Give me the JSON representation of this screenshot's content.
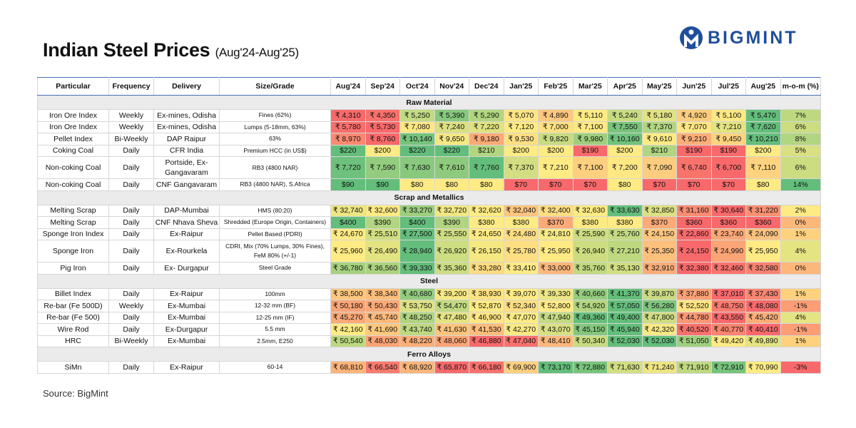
{
  "header": {
    "title": "Indian Steel Prices",
    "subtitle": "(Aug'24-Aug'25)",
    "logo": "BIGMINT"
  },
  "table": {
    "columns": [
      "Particular",
      "Frequency",
      "Delivery",
      "Size/Grade",
      "Aug'24",
      "Sep'24",
      "Oct'24",
      "Nov'24",
      "Dec'24",
      "Jan'25",
      "Feb'25",
      "Mar'25",
      "Apr'25",
      "May'25",
      "Jun'25",
      "Jul'25",
      "Aug'25",
      "m-o-m (%)"
    ],
    "sections": [
      {
        "title": "Raw Material",
        "rows": [
          [
            "Iron Ore Index",
            "Weekly",
            "Ex-mines, Odisha",
            "Fines (62%)",
            "₹ 4,310",
            "₹ 4,350",
            "₹ 5,250",
            "₹ 5,390",
            "₹ 5,290",
            "₹ 5,070",
            "₹ 4,890",
            "₹ 5,110",
            "₹ 5,240",
            "₹ 5,180",
            "₹ 4,920",
            "₹ 5,100",
            "₹ 5,470",
            "7%"
          ],
          [
            "Iron Ore Index",
            "Weekly",
            "Ex-mines, Odisha",
            "Lumps (5-18mm, 63%)",
            "₹ 5,780",
            "₹ 5,730",
            "₹ 7,080",
            "₹ 7,240",
            "₹ 7,220",
            "₹ 7,120",
            "₹ 7,000",
            "₹ 7,100",
            "₹ 7,550",
            "₹ 7,370",
            "₹ 7,070",
            "₹ 7,210",
            "₹ 7,620",
            "6%"
          ],
          [
            "Pellet Index",
            "Bi-Weekly",
            "DAP Raipur",
            "63%",
            "₹ 8,970",
            "₹ 8,760",
            "₹ 10,140",
            "₹ 9,650",
            "₹ 9,180",
            "₹ 9,530",
            "₹ 9,820",
            "₹ 9,980",
            "₹ 10,160",
            "₹ 9,610",
            "₹ 9,210",
            "₹ 9,450",
            "₹ 10,210",
            "8%"
          ],
          [
            "Coking Coal",
            "Daily",
            "CFR India",
            "Premium HCC (in US$)",
            "$220",
            "$200",
            "$220",
            "$220",
            "$210",
            "$200",
            "$200",
            "$190",
            "$200",
            "$210",
            "$190",
            "$190",
            "$200",
            "5%"
          ],
          [
            "Non-coking Coal",
            "Daily",
            "Portside, Ex-Gangavaram",
            "RB3 (4800 NAR)",
            "₹ 7,720",
            "₹ 7,590",
            "₹ 7,630",
            "₹ 7,610",
            "₹ 7,760",
            "₹ 7,370",
            "₹ 7,210",
            "₹ 7,100",
            "₹ 7,200",
            "₹ 7,090",
            "₹ 6,740",
            "₹ 6,700",
            "₹ 7,110",
            "6%"
          ],
          [
            "Non-coking Coal",
            "Daily",
            "CNF Gangavaram",
            "RB3 (4800 NAR), S.Africa",
            "$90",
            "$90",
            "$80",
            "$80",
            "$80",
            "$70",
            "$70",
            "$70",
            "$80",
            "$70",
            "$70",
            "$70",
            "$80",
            "14%"
          ]
        ]
      },
      {
        "title": "Scrap and Metallics",
        "rows": [
          [
            "Melting Scrap",
            "Daily",
            "DAP-Mumbai",
            "HMS (80:20)",
            "₹ 32,740",
            "₹ 32,600",
            "₹ 33,270",
            "₹ 32,720",
            "₹ 32,620",
            "₹ 32,040",
            "₹ 32,400",
            "₹ 32,630",
            "₹ 33,630",
            "₹ 32,850",
            "₹ 31,160",
            "₹ 30,640",
            "₹ 31,220",
            "2%"
          ],
          [
            "Melting Scrap",
            "Daily",
            "CNF Nhava Sheva",
            "Shredded (Europe Origin, Containers)",
            "$400",
            "$390",
            "$400",
            "$390",
            "$380",
            "$380",
            "$370",
            "$380",
            "$380",
            "$370",
            "$360",
            "$360",
            "$360",
            "0%"
          ],
          [
            "Sponge Iron Index",
            "Daily",
            "Ex-Raipur",
            "Pellet Based (PDRI)",
            "₹ 24,670",
            "₹ 25,510",
            "₹ 27,500",
            "₹ 25,550",
            "₹ 24,650",
            "₹ 24,480",
            "₹ 24,810",
            "₹ 25,590",
            "₹ 25,760",
            "₹ 24,150",
            "₹ 22,860",
            "₹ 23,740",
            "₹ 24,090",
            "1%"
          ],
          [
            "Sponge Iron",
            "Daily",
            "Ex-Rourkela",
            "CDRI, Mix (70% Lumps, 30% Fines), FeM 80% (+/-1)",
            "₹ 25,960",
            "₹ 26,490",
            "₹ 28,940",
            "₹ 26,920",
            "₹ 26,150",
            "₹ 25,780",
            "₹ 25,950",
            "₹ 26,940",
            "₹ 27,210",
            "₹ 25,350",
            "₹ 24,150",
            "₹ 24,990",
            "₹ 25,950",
            "4%"
          ],
          [
            "Pig Iron",
            "Daily",
            "Ex- Durgapur",
            "Steel Grade",
            "₹ 36,780",
            "₹ 36,560",
            "₹ 39,330",
            "₹ 35,360",
            "₹ 33,280",
            "₹ 33,410",
            "₹ 33,000",
            "₹ 35,760",
            "₹ 35,130",
            "₹ 32,910",
            "₹ 32,380",
            "₹ 32,460",
            "₹ 32,580",
            "0%"
          ]
        ]
      },
      {
        "title": "Steel",
        "rows": [
          [
            "Billet Index",
            "Daily",
            "Ex-Raipur",
            "100mm",
            "₹ 38,500",
            "₹ 38,340",
            "₹ 40,680",
            "₹ 39,200",
            "₹ 38,930",
            "₹ 39,070",
            "₹ 39,330",
            "₹ 40,660",
            "₹ 41,370",
            "₹ 39,870",
            "₹ 37,880",
            "₹ 37,010",
            "₹ 37,430",
            "1%"
          ],
          [
            "Re-bar (Fe 500D)",
            "Weekly",
            "Ex-Mumbai",
            "12-32 mm (BF)",
            "₹ 50,180",
            "₹ 50,430",
            "₹ 53,750",
            "₹ 54,470",
            "₹ 52,870",
            "₹ 52,340",
            "₹ 52,800",
            "₹ 54,920",
            "₹ 57,050",
            "₹ 56,280",
            "₹ 52,520",
            "₹ 48,750",
            "₹ 48,080",
            "-1%"
          ],
          [
            "Re-bar (Fe 500)",
            "Daily",
            "Ex-Mumbai",
            "12-25 mm (IF)",
            "₹ 45,270",
            "₹ 45,740",
            "₹ 48,250",
            "₹ 47,480",
            "₹ 46,900",
            "₹ 47,070",
            "₹ 47,940",
            "₹ 49,360",
            "₹ 49,400",
            "₹ 47,800",
            "₹ 44,780",
            "₹ 43,550",
            "₹ 45,420",
            "4%"
          ],
          [
            "Wire Rod",
            "Daily",
            "Ex-Durgapur",
            "5.5 mm",
            "₹ 42,160",
            "₹ 41,690",
            "₹ 43,740",
            "₹ 41,630",
            "₹ 41,530",
            "₹ 42,270",
            "₹ 43,070",
            "₹ 45,150",
            "₹ 45,940",
            "₹ 42,320",
            "₹ 40,520",
            "₹ 40,770",
            "₹ 40,410",
            "-1%"
          ],
          [
            "HRC",
            "Bi-Weekly",
            "Ex-Mumbai",
            "2.5mm, E250",
            "₹ 50,540",
            "₹ 48,030",
            "₹ 48,220",
            "₹ 48,060",
            "₹ 46,880",
            "₹ 47,040",
            "₹ 48,410",
            "₹ 50,340",
            "₹ 52,030",
            "₹ 52,030",
            "₹ 51,050",
            "₹ 49,420",
            "₹ 49,890",
            "1%"
          ]
        ]
      },
      {
        "title": "Ferro Alloys",
        "rows": [
          [
            "SiMn",
            "Daily",
            "Ex-Raipur",
            "60-14",
            "₹ 68,810",
            "₹ 66,540",
            "₹ 68,920",
            "₹ 65,870",
            "₹ 66,180",
            "₹ 69,900",
            "₹ 73,170",
            "₹ 72,880",
            "₹ 71,630",
            "₹ 71,240",
            "₹ 71,910",
            "₹ 72,910",
            "₹ 70,990",
            "-3%"
          ]
        ]
      }
    ]
  },
  "footer": {
    "source": "Source: BigMint"
  }
}
